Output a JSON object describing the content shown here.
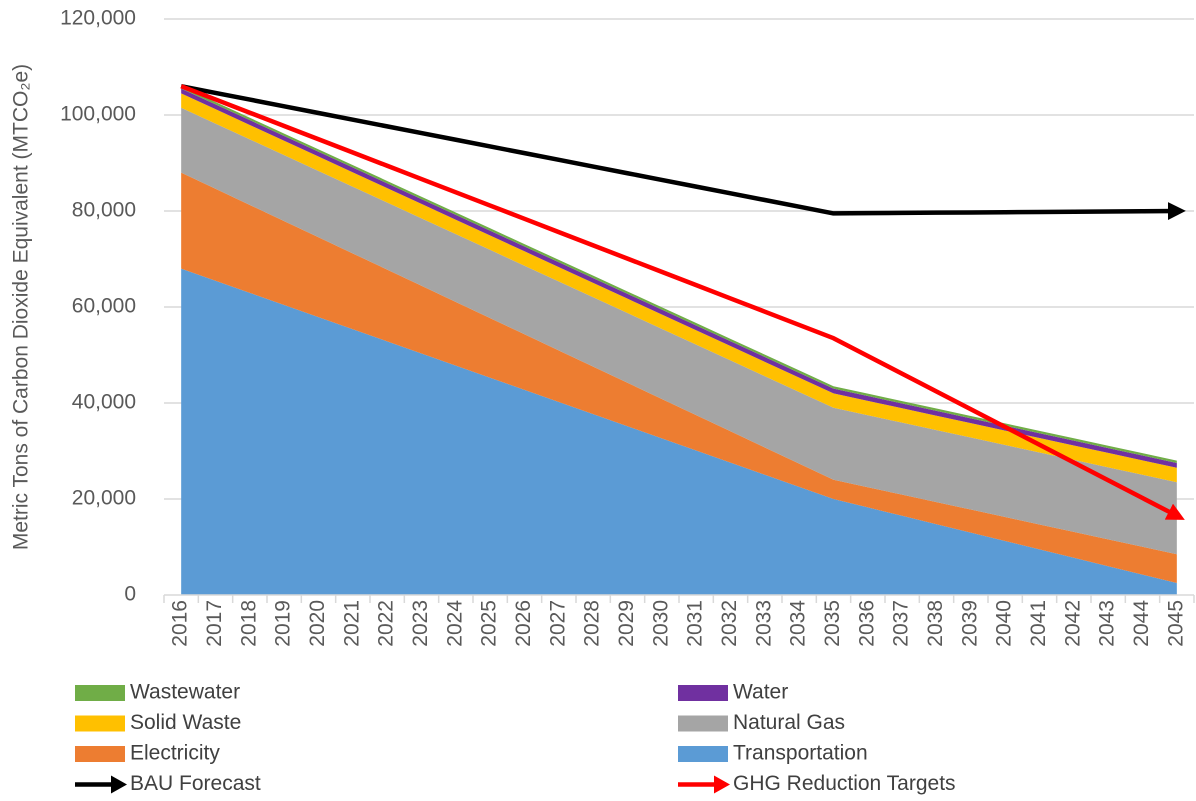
{
  "chart_data": {
    "type": "stacked_area",
    "y_label": "Metric Tons of Carbon Dioxide Equivalent (MTCO₂e)",
    "categories": [
      "2016",
      "2017",
      "2018",
      "2019",
      "2020",
      "2021",
      "2022",
      "2023",
      "2024",
      "2025",
      "2026",
      "2027",
      "2028",
      "2029",
      "2030",
      "2031",
      "2032",
      "2033",
      "2034",
      "2035",
      "2036",
      "2037",
      "2038",
      "2039",
      "2040",
      "2041",
      "2042",
      "2043",
      "2044",
      "2045"
    ],
    "ylim": [
      0,
      120000
    ],
    "yticks": [
      0,
      {
        "value": 20000,
        "label": "20,000"
      },
      {
        "value": 40000,
        "label": "40,000"
      },
      {
        "value": 60000,
        "label": "60,000"
      },
      {
        "value": 80000,
        "label": "80,000"
      },
      {
        "value": 100000,
        "label": "100,000"
      },
      {
        "value": 120000,
        "label": "120,000"
      }
    ],
    "grid": true,
    "legend": "bottom",
    "series": [
      {
        "name": "Transportation",
        "type": "area",
        "color": "#5b9bd5",
        "values": [
          68000,
          65474,
          62947,
          60421,
          57895,
          55368,
          52842,
          50316,
          47789,
          45263,
          42737,
          40211,
          37684,
          35158,
          32632,
          30105,
          27579,
          25053,
          22526,
          20000,
          18250,
          16500,
          14750,
          13000,
          11250,
          9500,
          7750,
          6000,
          4250,
          2500
        ]
      },
      {
        "name": "Electricity",
        "type": "area",
        "color": "#ed7d31",
        "values": [
          20000,
          19158,
          18316,
          17474,
          16632,
          15789,
          14947,
          14105,
          13263,
          12421,
          11579,
          10737,
          9895,
          9053,
          8211,
          7368,
          6526,
          5684,
          4842,
          4000,
          4200,
          4400,
          4600,
          4800,
          5000,
          5200,
          5400,
          5600,
          5800,
          6000
        ]
      },
      {
        "name": "Natural Gas",
        "type": "area",
        "color": "#a5a5a5",
        "values": [
          13500,
          13579,
          13658,
          13737,
          13816,
          13895,
          13974,
          14053,
          14132,
          14211,
          14289,
          14368,
          14447,
          14526,
          14605,
          14684,
          14763,
          14842,
          14921,
          15000,
          15000,
          15000,
          15000,
          15000,
          15000,
          15000,
          15000,
          15000,
          15000,
          15000
        ]
      },
      {
        "name": "Solid Waste",
        "type": "area",
        "color": "#ffc000",
        "values": [
          3000,
          3000,
          3000,
          3000,
          3000,
          3000,
          3000,
          3000,
          3000,
          3000,
          3000,
          3000,
          3000,
          3000,
          3000,
          3000,
          3000,
          3000,
          3000,
          3000,
          3000,
          3000,
          3000,
          3000,
          3000,
          3000,
          3000,
          3000,
          3000,
          3000
        ]
      },
      {
        "name": "Water",
        "type": "area",
        "color": "#7030a0",
        "values": [
          1000,
          1000,
          1000,
          1000,
          1000,
          1000,
          1000,
          1000,
          1000,
          1000,
          1000,
          1000,
          1000,
          1000,
          1000,
          1000,
          1000,
          1000,
          1000,
          1000,
          1000,
          1000,
          1000,
          1000,
          1000,
          1000,
          1000,
          1000,
          1000,
          1000
        ]
      },
      {
        "name": "Wastewater",
        "type": "area",
        "color": "#70ad47",
        "values": [
          500,
          500,
          500,
          500,
          500,
          500,
          500,
          500,
          500,
          500,
          500,
          500,
          500,
          500,
          500,
          500,
          500,
          500,
          500,
          500,
          500,
          500,
          500,
          500,
          500,
          500,
          500,
          500,
          500,
          500
        ]
      },
      {
        "name": "BAU Forecast",
        "type": "line",
        "color": "#000000",
        "values": [
          106000,
          104605,
          103211,
          101816,
          100421,
          99026,
          97632,
          96237,
          94842,
          93447,
          92053,
          90658,
          89263,
          87868,
          86474,
          85079,
          83684,
          82289,
          80895,
          79500,
          79550,
          79600,
          79650,
          79700,
          79750,
          79800,
          79850,
          79900,
          79950,
          80000
        ]
      },
      {
        "name": "GHG Reduction Targets",
        "type": "line",
        "color": "#ff0000",
        "values": [
          106000,
          103237,
          100474,
          97711,
          94947,
          92184,
          89421,
          86658,
          83895,
          81132,
          78368,
          75605,
          72842,
          70079,
          67316,
          64553,
          61789,
          59026,
          56263,
          53500,
          49800,
          46100,
          42400,
          38700,
          35000,
          31300,
          27600,
          23900,
          20200,
          16500
        ]
      }
    ]
  }
}
